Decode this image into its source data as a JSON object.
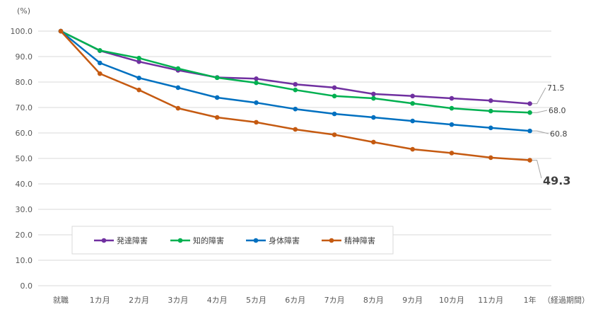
{
  "chart_data": {
    "type": "line",
    "y_unit": "(%)",
    "x_unit": "（経過期間）",
    "categories": [
      "就職",
      "1カ月",
      "2カ月",
      "3カ月",
      "4カ月",
      "5カ月",
      "6カ月",
      "7カ月",
      "8カ月",
      "9カ月",
      "10カ月",
      "11カ月",
      "1年"
    ],
    "ylim": [
      0,
      100
    ],
    "y_ticks": [
      "0.0",
      "10.0",
      "20.0",
      "30.0",
      "40.0",
      "50.0",
      "60.0",
      "70.0",
      "80.0",
      "90.0",
      "100.0"
    ],
    "grid": true,
    "legend_position": "bottom-left (inside plot)",
    "series": [
      {
        "name": "発達障害",
        "color": "#7030a0",
        "values": [
          100.0,
          92.3,
          88.0,
          84.6,
          81.8,
          81.3,
          79.1,
          77.8,
          75.3,
          74.5,
          73.6,
          72.7,
          71.5
        ],
        "end_label": "71.5"
      },
      {
        "name": "知的障害",
        "color": "#00b050",
        "values": [
          100.0,
          92.4,
          89.4,
          85.3,
          81.7,
          79.7,
          76.9,
          74.5,
          73.6,
          71.6,
          69.7,
          68.6,
          68.0
        ],
        "end_label": "68.0"
      },
      {
        "name": "身体障害",
        "color": "#0070c0",
        "values": [
          100.0,
          87.5,
          81.6,
          77.8,
          73.9,
          71.9,
          69.4,
          67.5,
          66.1,
          64.7,
          63.3,
          62.0,
          60.8
        ],
        "end_label": "60.8"
      },
      {
        "name": "精神障害",
        "color": "#c55a11",
        "values": [
          100.0,
          83.3,
          76.9,
          69.7,
          66.1,
          64.2,
          61.4,
          59.3,
          56.4,
          53.6,
          52.1,
          50.3,
          49.3
        ],
        "end_label": "49.3"
      }
    ]
  }
}
